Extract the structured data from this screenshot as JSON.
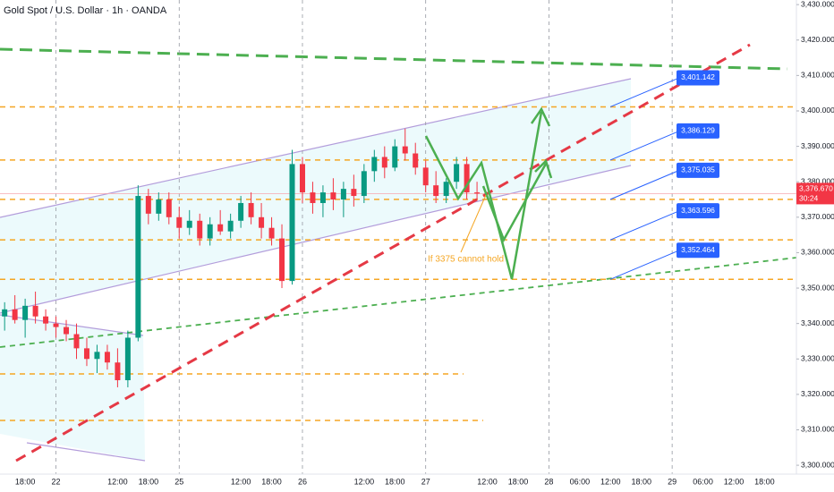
{
  "chart_data": {
    "type": "candlestick",
    "title": "Gold Spot / U.S. Dollar · 1h · OANDA",
    "x": [
      -4,
      -2,
      0,
      2,
      4,
      6,
      8,
      10,
      12,
      14,
      16,
      18,
      20,
      22,
      24,
      26,
      28,
      30,
      32,
      34,
      36,
      38,
      40,
      42,
      44,
      46,
      48,
      50,
      52,
      54,
      56,
      58,
      60,
      62,
      64,
      66,
      68,
      70,
      72,
      74,
      76,
      78,
      80,
      82,
      84,
      86,
      88
    ],
    "open": [
      3342,
      3344,
      3341,
      3345,
      3342,
      3340,
      3339,
      3337,
      3333,
      3330,
      3332,
      3329,
      3324,
      3336,
      3376,
      3371,
      3375,
      3370,
      3367,
      3369,
      3364,
      3368,
      3366,
      3369,
      3374,
      3370,
      3367,
      3364,
      3352,
      3385,
      3377,
      3374,
      3377,
      3375,
      3378,
      3376,
      3383,
      3387,
      3384,
      3390,
      3388,
      3384,
      3379,
      3376,
      3380,
      3385,
      3377
    ],
    "high": [
      3346,
      3348,
      3347,
      3349,
      3344,
      3342,
      3341,
      3340,
      3336,
      3334,
      3334,
      3333,
      3338,
      3379,
      3378,
      3377,
      3377,
      3373,
      3372,
      3371,
      3370,
      3372,
      3371,
      3376,
      3377,
      3374,
      3370,
      3368,
      3389,
      3387,
      3380,
      3379,
      3381,
      3380,
      3382,
      3385,
      3389,
      3390,
      3392,
      3395,
      3391,
      3386,
      3383,
      3381,
      3387,
      3387,
      3380
    ],
    "low": [
      3338,
      3340,
      3336,
      3340,
      3338,
      3336,
      3335,
      3330,
      3328,
      3326,
      3327,
      3322,
      3322,
      3335,
      3368,
      3369,
      3368,
      3364,
      3365,
      3362,
      3362,
      3365,
      3364,
      3367,
      3368,
      3364,
      3362,
      3350,
      3351,
      3374,
      3371,
      3370,
      3372,
      3370,
      3373,
      3374,
      3380,
      3381,
      3383,
      3386,
      3382,
      3377,
      3374,
      3374,
      3378,
      3375,
      3375
    ],
    "close": [
      3344,
      3341,
      3345,
      3342,
      3340,
      3339,
      3337,
      3333,
      3330,
      3332,
      3329,
      3324,
      3336,
      3376,
      3371,
      3375,
      3370,
      3367,
      3369,
      3364,
      3368,
      3366,
      3369,
      3374,
      3370,
      3367,
      3364,
      3352,
      3385,
      3377,
      3374,
      3377,
      3375,
      3378,
      3376,
      3383,
      3387,
      3384,
      3390,
      3388,
      3384,
      3379,
      3376,
      3380,
      3385,
      3377,
      3376.67
    ],
    "up_color": "#089981",
    "down_color": "#f23645",
    "xlim": [
      -4.9,
      150.2
    ],
    "xticks": [
      {
        "value": 0,
        "label": "18:00"
      },
      {
        "value": 6,
        "label": "22"
      },
      {
        "value": 18,
        "label": "12:00"
      },
      {
        "value": 24,
        "label": "18:00"
      },
      {
        "value": 30,
        "label": "25"
      },
      {
        "value": 42,
        "label": "12:00"
      },
      {
        "value": 48,
        "label": "18:00"
      },
      {
        "value": 54,
        "label": "26"
      },
      {
        "value": 66,
        "label": "12:00"
      },
      {
        "value": 72,
        "label": "18:00"
      },
      {
        "value": 78,
        "label": "27"
      },
      {
        "value": 90,
        "label": "12:00"
      },
      {
        "value": 96,
        "label": "18:00"
      },
      {
        "value": 102,
        "label": "28"
      },
      {
        "value": 108,
        "label": "06:00"
      },
      {
        "value": 114,
        "label": "12:00"
      },
      {
        "value": 120,
        "label": "18:00"
      },
      {
        "value": 126,
        "label": "29"
      },
      {
        "value": 132,
        "label": "06:00"
      },
      {
        "value": 138,
        "label": "12:00"
      },
      {
        "value": 144,
        "label": "18:00"
      }
    ],
    "ylim": [
      3297.5,
      3431.3
    ],
    "yticks": [
      {
        "value": 3430,
        "label": "3,430.000"
      },
      {
        "value": 3420,
        "label": "3,420.000"
      },
      {
        "value": 3410,
        "label": "3,410.000"
      },
      {
        "value": 3400,
        "label": "3,400.000"
      },
      {
        "value": 3390,
        "label": "3,390.000"
      },
      {
        "value": 3380,
        "label": "3,380.000"
      },
      {
        "value": 3370,
        "label": "3,370.000"
      },
      {
        "value": 3360,
        "label": "3,360.000"
      },
      {
        "value": 3350,
        "label": "3,350.000"
      },
      {
        "value": 3340,
        "label": "3,340.000"
      },
      {
        "value": 3330,
        "label": "3,330.000"
      },
      {
        "value": 3320,
        "label": "3,320.000"
      },
      {
        "value": 3310,
        "label": "3,310.000"
      },
      {
        "value": 3300,
        "label": "3,300.000"
      }
    ],
    "levels": {
      "values": [
        3401.142,
        3386.129,
        3375.035,
        3363.596,
        3352.464
      ],
      "value_labels": [
        "3,401.142",
        "3,386.129",
        "3,375.035",
        "3,363.596",
        "3,352.464"
      ]
    },
    "last_price": {
      "value": 3376.67,
      "label": "3,376.670"
    },
    "countdown": "30:24",
    "annotation": "If 3375 cannot hold"
  }
}
